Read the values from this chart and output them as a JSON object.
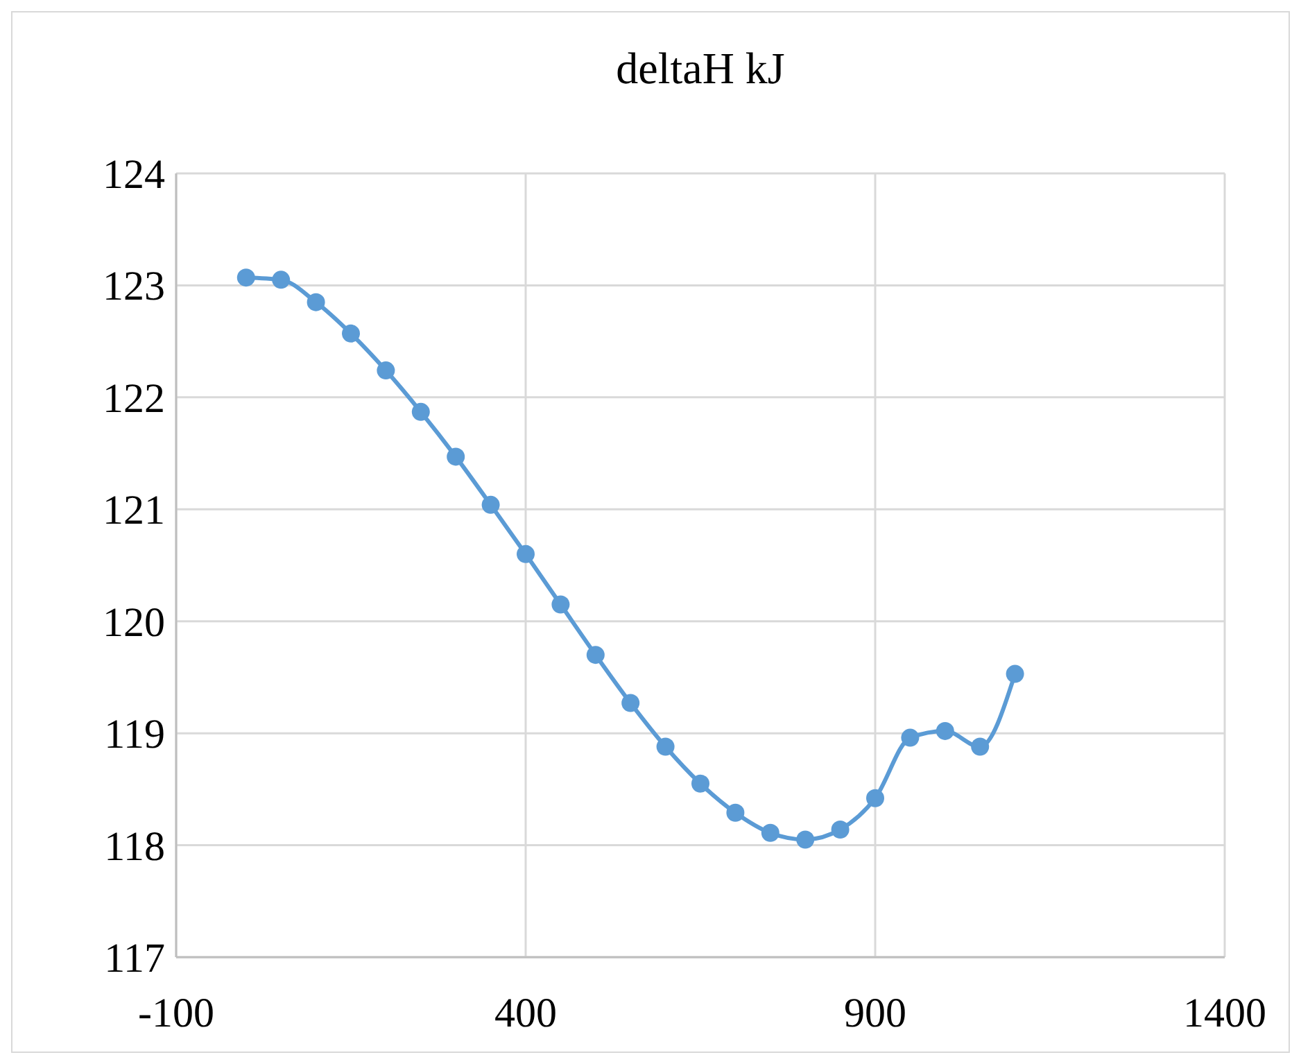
{
  "chart_data": {
    "type": "line",
    "title": "deltaH kJ",
    "series": [
      {
        "color": "#5b9bd5",
        "x": [
          0,
          50,
          100,
          150,
          200,
          250,
          300,
          350,
          400,
          450,
          500,
          550,
          600,
          650,
          700,
          750,
          800,
          850,
          900,
          950,
          1000,
          1050,
          1100
        ],
        "values": [
          123.07,
          123.05,
          122.85,
          122.57,
          122.24,
          121.87,
          121.47,
          121.04,
          120.6,
          120.15,
          119.7,
          119.27,
          118.88,
          118.55,
          118.29,
          118.11,
          118.05,
          118.14,
          118.42,
          118.96,
          119.02,
          118.88,
          119.53
        ]
      }
    ],
    "xlim": [
      -100,
      1400
    ],
    "xticks": [
      -100,
      400,
      900,
      1400
    ],
    "ylim": [
      117,
      124
    ],
    "yticks": [
      117,
      118,
      119,
      120,
      121,
      122,
      123,
      124
    ],
    "grid": true,
    "marker": "circle",
    "line_style": "solid"
  }
}
